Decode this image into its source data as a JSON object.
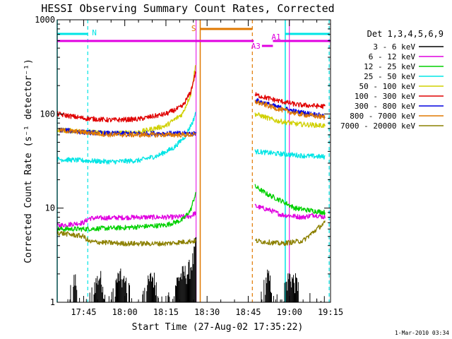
{
  "chart_data": {
    "type": "line",
    "title": "HESSI Observing Summary Count Rates, Corrected",
    "xlabel": "Start Time (27-Aug-02 17:35:22)",
    "ylabel": "Corrected Count Rate (s⁻¹ detector⁻¹)",
    "yscale": "log",
    "ylim": [
      1,
      1000
    ],
    "xlim": [
      "17:35:22",
      "19:15:00"
    ],
    "x_ticks": [
      "17:45",
      "18:00",
      "18:15",
      "18:30",
      "18:45",
      "19:00",
      "19:15"
    ],
    "y_ticks": [
      "1",
      "10",
      "100",
      "1000"
    ],
    "grid": false,
    "legend_position": "right",
    "legend_header": "Det 1,3,4,5,6,9",
    "timestamp": "1-Mar-2010 03:34",
    "colors": {
      "background": "#ffffff",
      "axes": "#000000",
      "night": "#00e5e5",
      "saa": "#e07800",
      "attenuator": "#e000e0"
    },
    "markers": {
      "night": {
        "label": "N",
        "intervals": [
          [
            "17:35:22",
            "17:46:30"
          ],
          [
            "18:58:30",
            "19:14:30"
          ]
        ],
        "edges": [
          "17:46:30",
          "18:58:30"
        ],
        "dashed": [
          "17:46:30",
          "19:14:30"
        ],
        "solid": [
          "17:35:22",
          "18:58:30"
        ]
      },
      "saa": {
        "label": "S",
        "intervals": [
          [
            "18:27:30",
            "18:46:30"
          ]
        ],
        "solid": [
          "18:27:30"
        ],
        "dashed": [
          "18:46:30"
        ]
      },
      "attenuator": {
        "labels": [
          "A3",
          "A1"
        ],
        "bar_intervals": [
          [
            "17:35:22",
            "18:47:00"
          ],
          [
            "18:54:00",
            "19:15:00"
          ]
        ],
        "a3_segment": [
          "18:50:00",
          "18:54:00"
        ],
        "solid": [
          "18:26:00",
          "19:00:00"
        ]
      }
    },
    "series": [
      {
        "name": "3 - 6 keV",
        "color": "#000000",
        "style": "spiky",
        "points": [
          [
            "17:39:00",
            1
          ],
          [
            "17:42:00",
            2
          ],
          [
            "17:44:00",
            1
          ],
          [
            "17:51:00",
            2
          ],
          [
            "17:53:00",
            1
          ],
          [
            "17:58:00",
            2
          ],
          [
            "18:05:00",
            1
          ],
          [
            "18:10:00",
            2
          ],
          [
            "18:15:00",
            1
          ],
          [
            "18:20:00",
            2
          ],
          [
            "18:23:00",
            2.2
          ],
          [
            "18:25:00",
            3
          ],
          [
            "18:26:00",
            4.5
          ]
        ],
        "points2": [
          [
            "18:49:00",
            1
          ],
          [
            "18:52:00",
            2
          ],
          [
            "18:56:00",
            1
          ],
          [
            "19:00:00",
            2
          ],
          [
            "19:04:00",
            1.5
          ],
          [
            "19:08:00",
            1
          ],
          [
            "19:13:00",
            1
          ]
        ]
      },
      {
        "name": "6 - 12 keV",
        "color": "#e000e0",
        "style": "noisy",
        "points": [
          [
            "17:35:22",
            6.5
          ],
          [
            "17:45:00",
            7
          ],
          [
            "17:47:00",
            7.8
          ],
          [
            "18:05:00",
            8
          ],
          [
            "18:17:00",
            8
          ],
          [
            "18:24:00",
            8.2
          ],
          [
            "18:26:00",
            9
          ]
        ],
        "points2": [
          [
            "18:47:30",
            10.5
          ],
          [
            "18:53:00",
            9.5
          ],
          [
            "18:57:00",
            8.5
          ],
          [
            "19:05:00",
            8
          ],
          [
            "19:09:00",
            8.5
          ],
          [
            "19:13:00",
            8
          ]
        ]
      },
      {
        "name": "12 - 25 keV",
        "color": "#00d000",
        "style": "noisy",
        "points": [
          [
            "17:35:22",
            6
          ],
          [
            "17:45:00",
            6
          ],
          [
            "18:00:00",
            6.2
          ],
          [
            "18:15:00",
            6.6
          ],
          [
            "18:21:00",
            7.5
          ],
          [
            "18:24:00",
            9.5
          ],
          [
            "18:26:00",
            15
          ]
        ],
        "points2": [
          [
            "18:47:30",
            17
          ],
          [
            "18:52:00",
            14
          ],
          [
            "18:57:00",
            12
          ],
          [
            "19:02:00",
            10
          ],
          [
            "19:07:00",
            9.5
          ],
          [
            "19:13:00",
            9
          ]
        ]
      },
      {
        "name": "25 - 50 keV",
        "color": "#00e5e5",
        "style": "noisy",
        "points": [
          [
            "17:35:22",
            33
          ],
          [
            "17:45:00",
            32
          ],
          [
            "17:55:00",
            31
          ],
          [
            "18:05:00",
            32
          ],
          [
            "18:12:00",
            36
          ],
          [
            "18:18:00",
            44
          ],
          [
            "18:22:00",
            58
          ],
          [
            "18:25:00",
            85
          ],
          [
            "18:26:00",
            110
          ]
        ],
        "points2": [
          [
            "18:47:30",
            40
          ],
          [
            "18:55:00",
            38
          ],
          [
            "19:05:00",
            36
          ],
          [
            "19:13:00",
            35
          ]
        ]
      },
      {
        "name": "50 - 100 keV",
        "color": "#d0d000",
        "style": "noisy",
        "points": [
          [
            "17:35:22",
            68
          ],
          [
            "17:45:00",
            65
          ],
          [
            "17:55:00",
            62
          ],
          [
            "18:05:00",
            64
          ],
          [
            "18:15:00",
            75
          ],
          [
            "18:21:00",
            100
          ],
          [
            "18:24:00",
            160
          ],
          [
            "18:26:00",
            350
          ]
        ],
        "points2": [
          [
            "18:47:30",
            100
          ],
          [
            "18:55:00",
            85
          ],
          [
            "19:03:00",
            78
          ],
          [
            "19:13:00",
            75
          ]
        ]
      },
      {
        "name": "100 - 300 keV",
        "color": "#e00000",
        "style": "noisy",
        "points": [
          [
            "17:35:22",
            100
          ],
          [
            "17:45:00",
            90
          ],
          [
            "17:55:00",
            86
          ],
          [
            "18:05:00",
            88
          ],
          [
            "18:15:00",
            100
          ],
          [
            "18:21:00",
            120
          ],
          [
            "18:24:00",
            170
          ],
          [
            "18:26:00",
            290
          ]
        ],
        "points2": [
          [
            "18:47:30",
            160
          ],
          [
            "18:55:00",
            140
          ],
          [
            "19:03:00",
            125
          ],
          [
            "19:13:00",
            120
          ]
        ]
      },
      {
        "name": "300 - 800 keV",
        "color": "#0000e0",
        "style": "noisy",
        "points": [
          [
            "17:36:00",
            68
          ],
          [
            "17:45:00",
            64
          ],
          [
            "17:55:00",
            62
          ],
          [
            "18:05:00",
            62
          ],
          [
            "18:15:00",
            62
          ],
          [
            "18:26:00",
            62
          ]
        ],
        "points2": [
          [
            "18:47:30",
            140
          ],
          [
            "18:55:00",
            120
          ],
          [
            "19:03:00",
            105
          ],
          [
            "19:13:00",
            95
          ]
        ]
      },
      {
        "name": "800 - 7000 keV",
        "color": "#e07800",
        "style": "noisy",
        "points": [
          [
            "17:36:00",
            67
          ],
          [
            "17:45:00",
            64
          ],
          [
            "17:55:00",
            60
          ],
          [
            "18:05:00",
            60
          ],
          [
            "18:15:00",
            60
          ],
          [
            "18:26:00",
            60
          ]
        ],
        "points2": [
          [
            "18:47:30",
            135
          ],
          [
            "18:55:00",
            115
          ],
          [
            "19:03:00",
            100
          ],
          [
            "19:13:00",
            92
          ]
        ]
      },
      {
        "name": "7000 - 20000 keV",
        "color": "#8c8000",
        "style": "noisy",
        "points": [
          [
            "17:35:22",
            5.5
          ],
          [
            "17:45:00",
            5
          ],
          [
            "17:47:00",
            4.4
          ],
          [
            "18:00:00",
            4.2
          ],
          [
            "18:15:00",
            4.2
          ],
          [
            "18:26:00",
            4.5
          ]
        ],
        "points2": [
          [
            "18:47:30",
            4.5
          ],
          [
            "18:57:00",
            4.2
          ],
          [
            "19:05:00",
            4.5
          ],
          [
            "19:10:00",
            6
          ],
          [
            "19:13:00",
            7
          ]
        ]
      }
    ]
  }
}
